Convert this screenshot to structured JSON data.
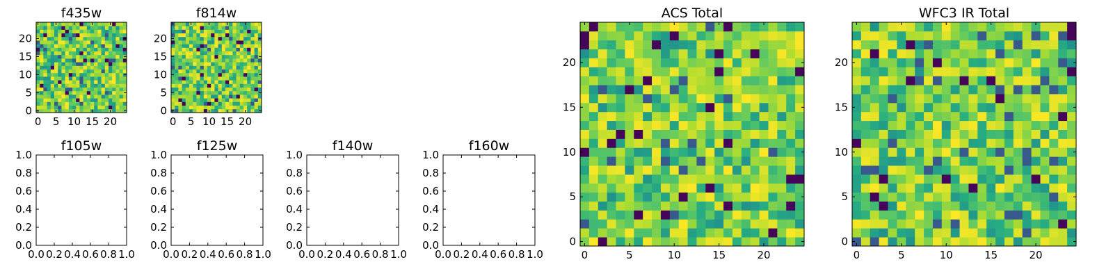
{
  "chart_data": [
    {
      "type": "heatmap",
      "title": "f435w",
      "grid_size": 25,
      "seed": 11,
      "xlim": [
        -0.5,
        24.5
      ],
      "ylim": [
        -0.5,
        24.5
      ],
      "xticks": [
        0,
        5,
        10,
        15,
        20
      ],
      "yticks": [
        0,
        5,
        10,
        15,
        20
      ],
      "colormap": "viridis"
    },
    {
      "type": "heatmap",
      "title": "f814w",
      "grid_size": 25,
      "seed": 23,
      "xlim": [
        -0.5,
        24.5
      ],
      "ylim": [
        -0.5,
        24.5
      ],
      "xticks": [
        0,
        5,
        10,
        15,
        20
      ],
      "yticks": [
        0,
        5,
        10,
        15,
        20
      ],
      "colormap": "viridis"
    },
    {
      "type": "heatmap",
      "title": "f105w",
      "empty": true,
      "xlim": [
        0,
        1
      ],
      "ylim": [
        0,
        1
      ],
      "xticks": [
        "0.0",
        "0.2",
        "0.4",
        "0.6",
        "0.8",
        "1.0"
      ],
      "yticks": [
        "0.0",
        "0.2",
        "0.4",
        "0.6",
        "0.8",
        "1.0"
      ]
    },
    {
      "type": "heatmap",
      "title": "f125w",
      "empty": true,
      "xlim": [
        0,
        1
      ],
      "ylim": [
        0,
        1
      ],
      "xticks": [
        "0.0",
        "0.2",
        "0.4",
        "0.6",
        "0.8",
        "1.0"
      ],
      "yticks": [
        "0.0",
        "0.2",
        "0.4",
        "0.6",
        "0.8",
        "1.0"
      ]
    },
    {
      "type": "heatmap",
      "title": "f140w",
      "empty": true,
      "xlim": [
        0,
        1
      ],
      "ylim": [
        0,
        1
      ],
      "xticks": [
        "0.0",
        "0.2",
        "0.4",
        "0.6",
        "0.8",
        "1.0"
      ],
      "yticks": [
        "0.0",
        "0.2",
        "0.4",
        "0.6",
        "0.8",
        "1.0"
      ]
    },
    {
      "type": "heatmap",
      "title": "f160w",
      "empty": true,
      "xlim": [
        0,
        1
      ],
      "ylim": [
        0,
        1
      ],
      "xticks": [
        "0.0",
        "0.2",
        "0.4",
        "0.6",
        "0.8",
        "1.0"
      ],
      "yticks": [
        "0.0",
        "0.2",
        "0.4",
        "0.6",
        "0.8",
        "1.0"
      ]
    },
    {
      "type": "heatmap",
      "title": "ACS Total",
      "grid_size": 25,
      "seed": 37,
      "xlim": [
        -0.5,
        24.5
      ],
      "ylim": [
        -0.5,
        24.5
      ],
      "xticks": [
        0,
        5,
        10,
        15,
        20
      ],
      "yticks": [
        0,
        5,
        10,
        15,
        20
      ],
      "colormap": "viridis"
    },
    {
      "type": "heatmap",
      "title": "WFC3 IR Total",
      "grid_size": 25,
      "seed": 53,
      "xlim": [
        -0.5,
        24.5
      ],
      "ylim": [
        -0.5,
        24.5
      ],
      "xticks": [
        0,
        5,
        10,
        15,
        20
      ],
      "yticks": [
        0,
        5,
        10,
        15,
        20
      ],
      "colormap": "viridis"
    }
  ]
}
